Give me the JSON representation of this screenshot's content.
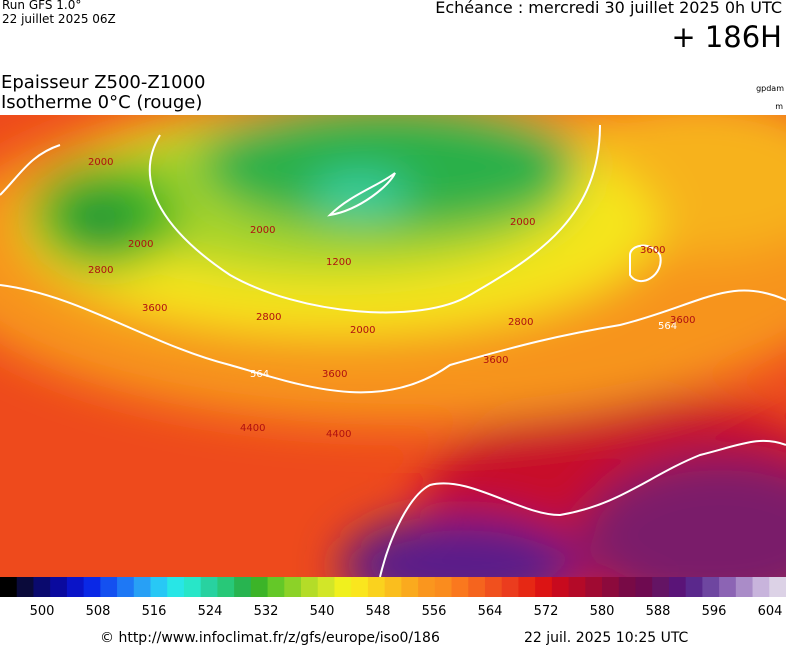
{
  "header": {
    "run": "Run GFS 1.0°",
    "run_date": "22 juillet 2025 06Z",
    "valid": "Echéance : mercredi 30 juillet 2025 0h UTC",
    "lead": "+ 186H",
    "title": "Epaisseur Z500-Z1000",
    "subtitle": "Isotherme 0°C (rouge)",
    "unit_thickness": "gpdam",
    "unit_iso": "m"
  },
  "map": {
    "contour_labels": [
      "2000",
      "2000",
      "2800",
      "3600",
      "2000",
      "1200",
      "2800",
      "2000",
      "3600",
      "564",
      "4400",
      "4400",
      "3600",
      "2800",
      "564",
      "3600",
      "3600",
      "2000"
    ]
  },
  "colorbar": {
    "ticks": [
      500,
      508,
      516,
      524,
      532,
      540,
      548,
      556,
      564,
      572,
      580,
      588,
      596,
      604
    ],
    "colors": [
      "#000000",
      "#0a0a3a",
      "#0a0a6e",
      "#0a0a9e",
      "#0a14c8",
      "#0a28e6",
      "#1450f0",
      "#1e78f5",
      "#28a0f5",
      "#28c8f5",
      "#28e6e6",
      "#28e6c8",
      "#28d2a0",
      "#28c878",
      "#28b450",
      "#3cb428",
      "#64c828",
      "#8cd228",
      "#b4dc28",
      "#d2e628",
      "#f0f01e",
      "#fae61e",
      "#fad21e",
      "#fabe1e",
      "#faaa1e",
      "#fa961e",
      "#fa8c1e",
      "#fa781e",
      "#f5641e",
      "#f0501e",
      "#eb3c1e",
      "#e62814",
      "#dc1414",
      "#c80a1e",
      "#b40a28",
      "#a00a32",
      "#8c0a3c",
      "#780a46",
      "#6e0a50",
      "#641464",
      "#5a1478",
      "#5a288c",
      "#6e46a0",
      "#8c64b4",
      "#aa8cc8",
      "#c8b4dc",
      "#dcd2e6"
    ]
  },
  "footer": {
    "url": "© http://www.infoclimat.fr/z/gfs/europe/iso0/186",
    "timestamp": "22 juil. 2025 10:25 UTC"
  }
}
